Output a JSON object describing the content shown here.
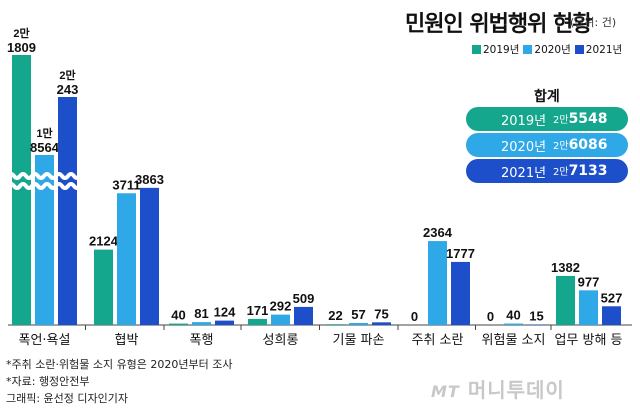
{
  "title": "민원인 위법행위 현황",
  "unit": "(단위: 건)",
  "colors": {
    "2019": "#15a78e",
    "2020": "#2ea8e6",
    "2021": "#1c4fc9"
  },
  "legend": [
    {
      "label": "2019년",
      "color": "#15a78e"
    },
    {
      "label": "2020년",
      "color": "#2ea8e6"
    },
    {
      "label": "2021년",
      "color": "#1c4fc9"
    }
  ],
  "totals": {
    "heading": "합계",
    "rows": [
      {
        "year": "2019년",
        "man": "2만",
        "rest": "5548",
        "color": "#15a78e"
      },
      {
        "year": "2020년",
        "man": "2만",
        "rest": "6086",
        "color": "#2ea8e6"
      },
      {
        "year": "2021년",
        "man": "2만",
        "rest": "7133",
        "color": "#1c4fc9"
      }
    ]
  },
  "chart_data": {
    "type": "bar",
    "categories": [
      "폭언·욕설",
      "협박",
      "폭행",
      "성희롱",
      "기물 파손",
      "주취 소란",
      "위험물 소지",
      "업무 방해 등"
    ],
    "series": [
      {
        "name": "2019년",
        "values": [
          21809,
          2124,
          40,
          171,
          22,
          0,
          0,
          1382
        ]
      },
      {
        "name": "2020년",
        "values": [
          18564,
          3711,
          81,
          292,
          57,
          2364,
          40,
          977
        ]
      },
      {
        "name": "2021년",
        "values": [
          20243,
          3863,
          124,
          509,
          75,
          1777,
          15,
          527
        ]
      }
    ],
    "value_labels": [
      [
        "2만\n1809",
        "2124",
        "40",
        "171",
        "22",
        "0",
        "0",
        "1382"
      ],
      [
        "1만\n8564",
        "3711",
        "81",
        "292",
        "57",
        "2364",
        "40",
        "977"
      ],
      [
        "2만\n243",
        "3863",
        "124",
        "509",
        "75",
        "1777",
        "15",
        "527"
      ]
    ],
    "axis_break": true,
    "grid": false,
    "legend_position": "top-right"
  },
  "footnotes": [
    "*주취 소란·위험물 소지 유형은 2020년부터 조사",
    "*자료: 행정안전부",
    "그래픽: 윤선정 디자인기자"
  ],
  "logo": {
    "mark": "MT",
    "text": "머니투데이"
  }
}
